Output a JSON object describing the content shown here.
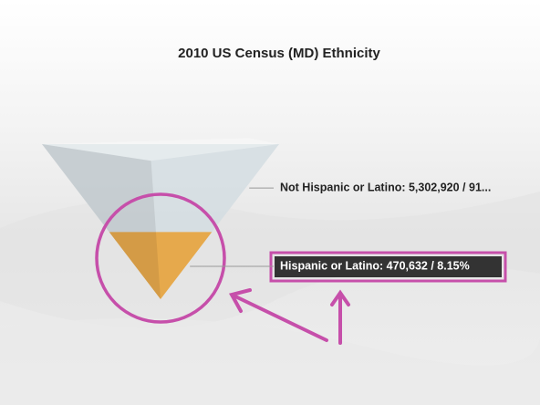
{
  "chart_data": {
    "type": "funnel",
    "title": "2010 US Census (MD) Ethnicity",
    "categories": [
      "Not Hispanic or Latino",
      "Hispanic or Latino"
    ],
    "values": [
      5302920,
      470632
    ],
    "value_labels": [
      "Not Hispanic or Latino: 5,302,920 / 91...",
      "Hispanic or Latino: 470,632 / 8.15%"
    ],
    "colors": [
      "#d3dde2",
      "#e6a94c"
    ]
  }
}
